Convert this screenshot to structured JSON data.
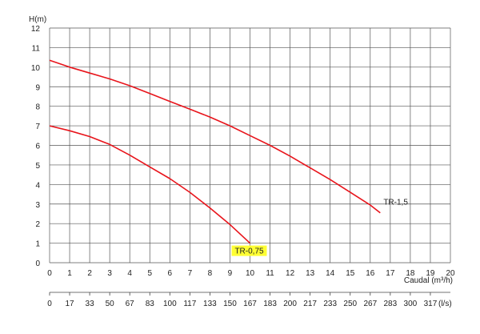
{
  "chart_data": {
    "type": "line",
    "ylabel": "H(m)",
    "xlabel": "Caudal (m³/h)",
    "x2label": "(l/s)",
    "xlim": [
      0,
      20
    ],
    "ylim": [
      0,
      12
    ],
    "xticks": [
      "0",
      "1",
      "2",
      "3",
      "4",
      "5",
      "6",
      "7",
      "8",
      "9",
      "10",
      "11",
      "12",
      "13",
      "14",
      "15",
      "16",
      "17",
      "18",
      "19",
      "20"
    ],
    "yticks": [
      "0",
      "1",
      "2",
      "3",
      "4",
      "5",
      "6",
      "7",
      "8",
      "9",
      "10",
      "11",
      "12"
    ],
    "x2ticks": [
      "0",
      "17",
      "33",
      "50",
      "67",
      "83",
      "100",
      "117",
      "133",
      "150",
      "167",
      "183",
      "200",
      "217",
      "233",
      "250",
      "267",
      "283",
      "300",
      "317"
    ],
    "grid": true,
    "series": [
      {
        "name": "TR-1,5",
        "color": "#e8141b",
        "x": [
          0,
          1,
          2,
          3,
          4,
          5,
          6,
          7,
          8,
          9,
          10,
          11,
          12,
          13,
          14,
          15,
          16,
          16.5
        ],
        "y": [
          10.35,
          10.0,
          9.7,
          9.4,
          9.05,
          8.65,
          8.25,
          7.85,
          7.45,
          7.0,
          6.5,
          6.0,
          5.45,
          4.85,
          4.25,
          3.6,
          2.95,
          2.55
        ]
      },
      {
        "name": "TR-0,75",
        "color": "#e8141b",
        "highlight": "#ffff33",
        "x": [
          0,
          1,
          2,
          3,
          4,
          5,
          6,
          7,
          8,
          9,
          10
        ],
        "y": [
          7.0,
          6.75,
          6.45,
          6.05,
          5.5,
          4.9,
          4.3,
          3.6,
          2.8,
          1.95,
          1.0
        ]
      }
    ]
  }
}
